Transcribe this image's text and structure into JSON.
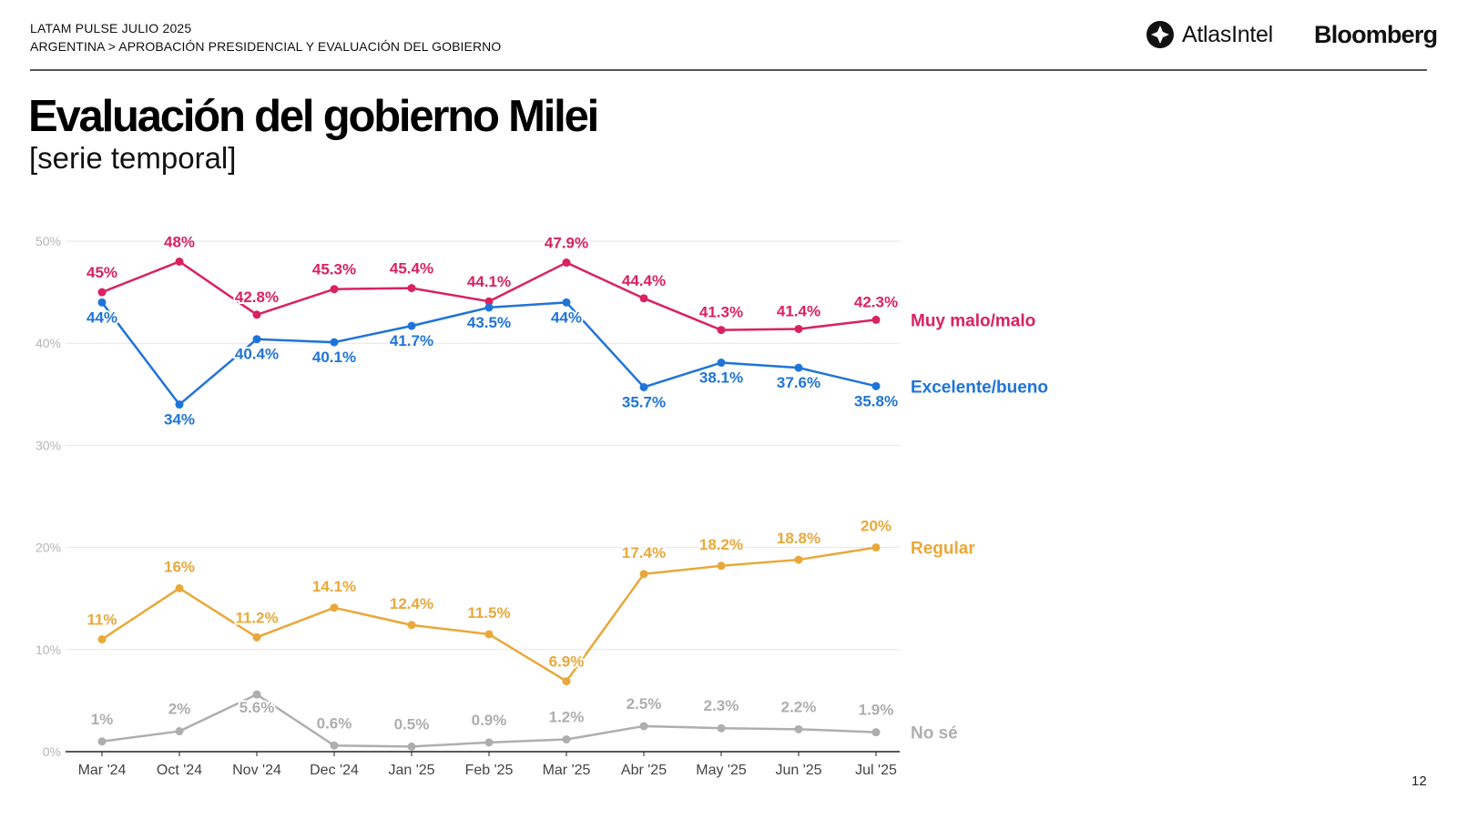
{
  "header": {
    "line1": "LATAM PULSE JULIO 2025",
    "line2": "ARGENTINA > APROBACIÓN PRESIDENCIAL Y EVALUACIÓN DEL GOBIERNO",
    "logo_atlas": "AtlasIntel",
    "logo_bloomberg": "Bloomberg"
  },
  "title": "Evaluación del gobierno Milei",
  "subtitle": "[serie temporal]",
  "page_number": "12",
  "chart_data": {
    "type": "line",
    "categories": [
      "Mar '24",
      "Oct '24",
      "Nov '24",
      "Dec '24",
      "Jan '25",
      "Feb '25",
      "Mar '25",
      "Abr '25",
      "May '25",
      "Jun '25",
      "Jul '25"
    ],
    "ylim": [
      0,
      50
    ],
    "yticks": [
      0,
      10,
      20,
      30,
      40,
      50
    ],
    "ytick_labels": [
      "0%",
      "10%",
      "20%",
      "30%",
      "40%",
      "50%"
    ],
    "grid": true,
    "legend": "right, at line ends",
    "series": [
      {
        "name": "Muy malo/malo",
        "color": "#d9225f",
        "values": [
          45,
          48,
          42.8,
          45.3,
          45.4,
          44.1,
          47.9,
          44.4,
          41.3,
          41.4,
          42.3
        ],
        "labels": [
          "45%",
          "48%",
          "42.8%",
          "45.3%",
          "45.4%",
          "44.1%",
          "47.9%",
          "44.4%",
          "41.3%",
          "41.4%",
          "42.3%"
        ]
      },
      {
        "name": "Excelente/bueno",
        "color": "#1f74d8",
        "values": [
          44,
          34,
          40.4,
          40.1,
          41.7,
          43.5,
          44,
          35.7,
          38.1,
          37.6,
          35.8
        ],
        "labels": [
          "44%",
          "34%",
          "40.4%",
          "40.1%",
          "41.7%",
          "43.5%",
          "44%",
          "35.7%",
          "38.1%",
          "37.6%",
          "35.8%"
        ]
      },
      {
        "name": "Regular",
        "color": "#e9a83a",
        "values": [
          11,
          16,
          11.2,
          14.1,
          12.4,
          11.5,
          6.9,
          17.4,
          18.2,
          18.8,
          20
        ],
        "labels": [
          "11%",
          "16%",
          "11.2%",
          "14.1%",
          "12.4%",
          "11.5%",
          "6.9%",
          "17.4%",
          "18.2%",
          "18.8%",
          "20%"
        ]
      },
      {
        "name": "No sé",
        "color": "#b0adad",
        "values": [
          1,
          2,
          5.6,
          0.6,
          0.5,
          0.9,
          1.2,
          2.5,
          2.3,
          2.2,
          1.9
        ],
        "labels": [
          "1%",
          "2%",
          "5.6%",
          "0.6%",
          "0.5%",
          "0.9%",
          "1.2%",
          "2.5%",
          "2.3%",
          "2.2%",
          "1.9%"
        ]
      }
    ]
  }
}
